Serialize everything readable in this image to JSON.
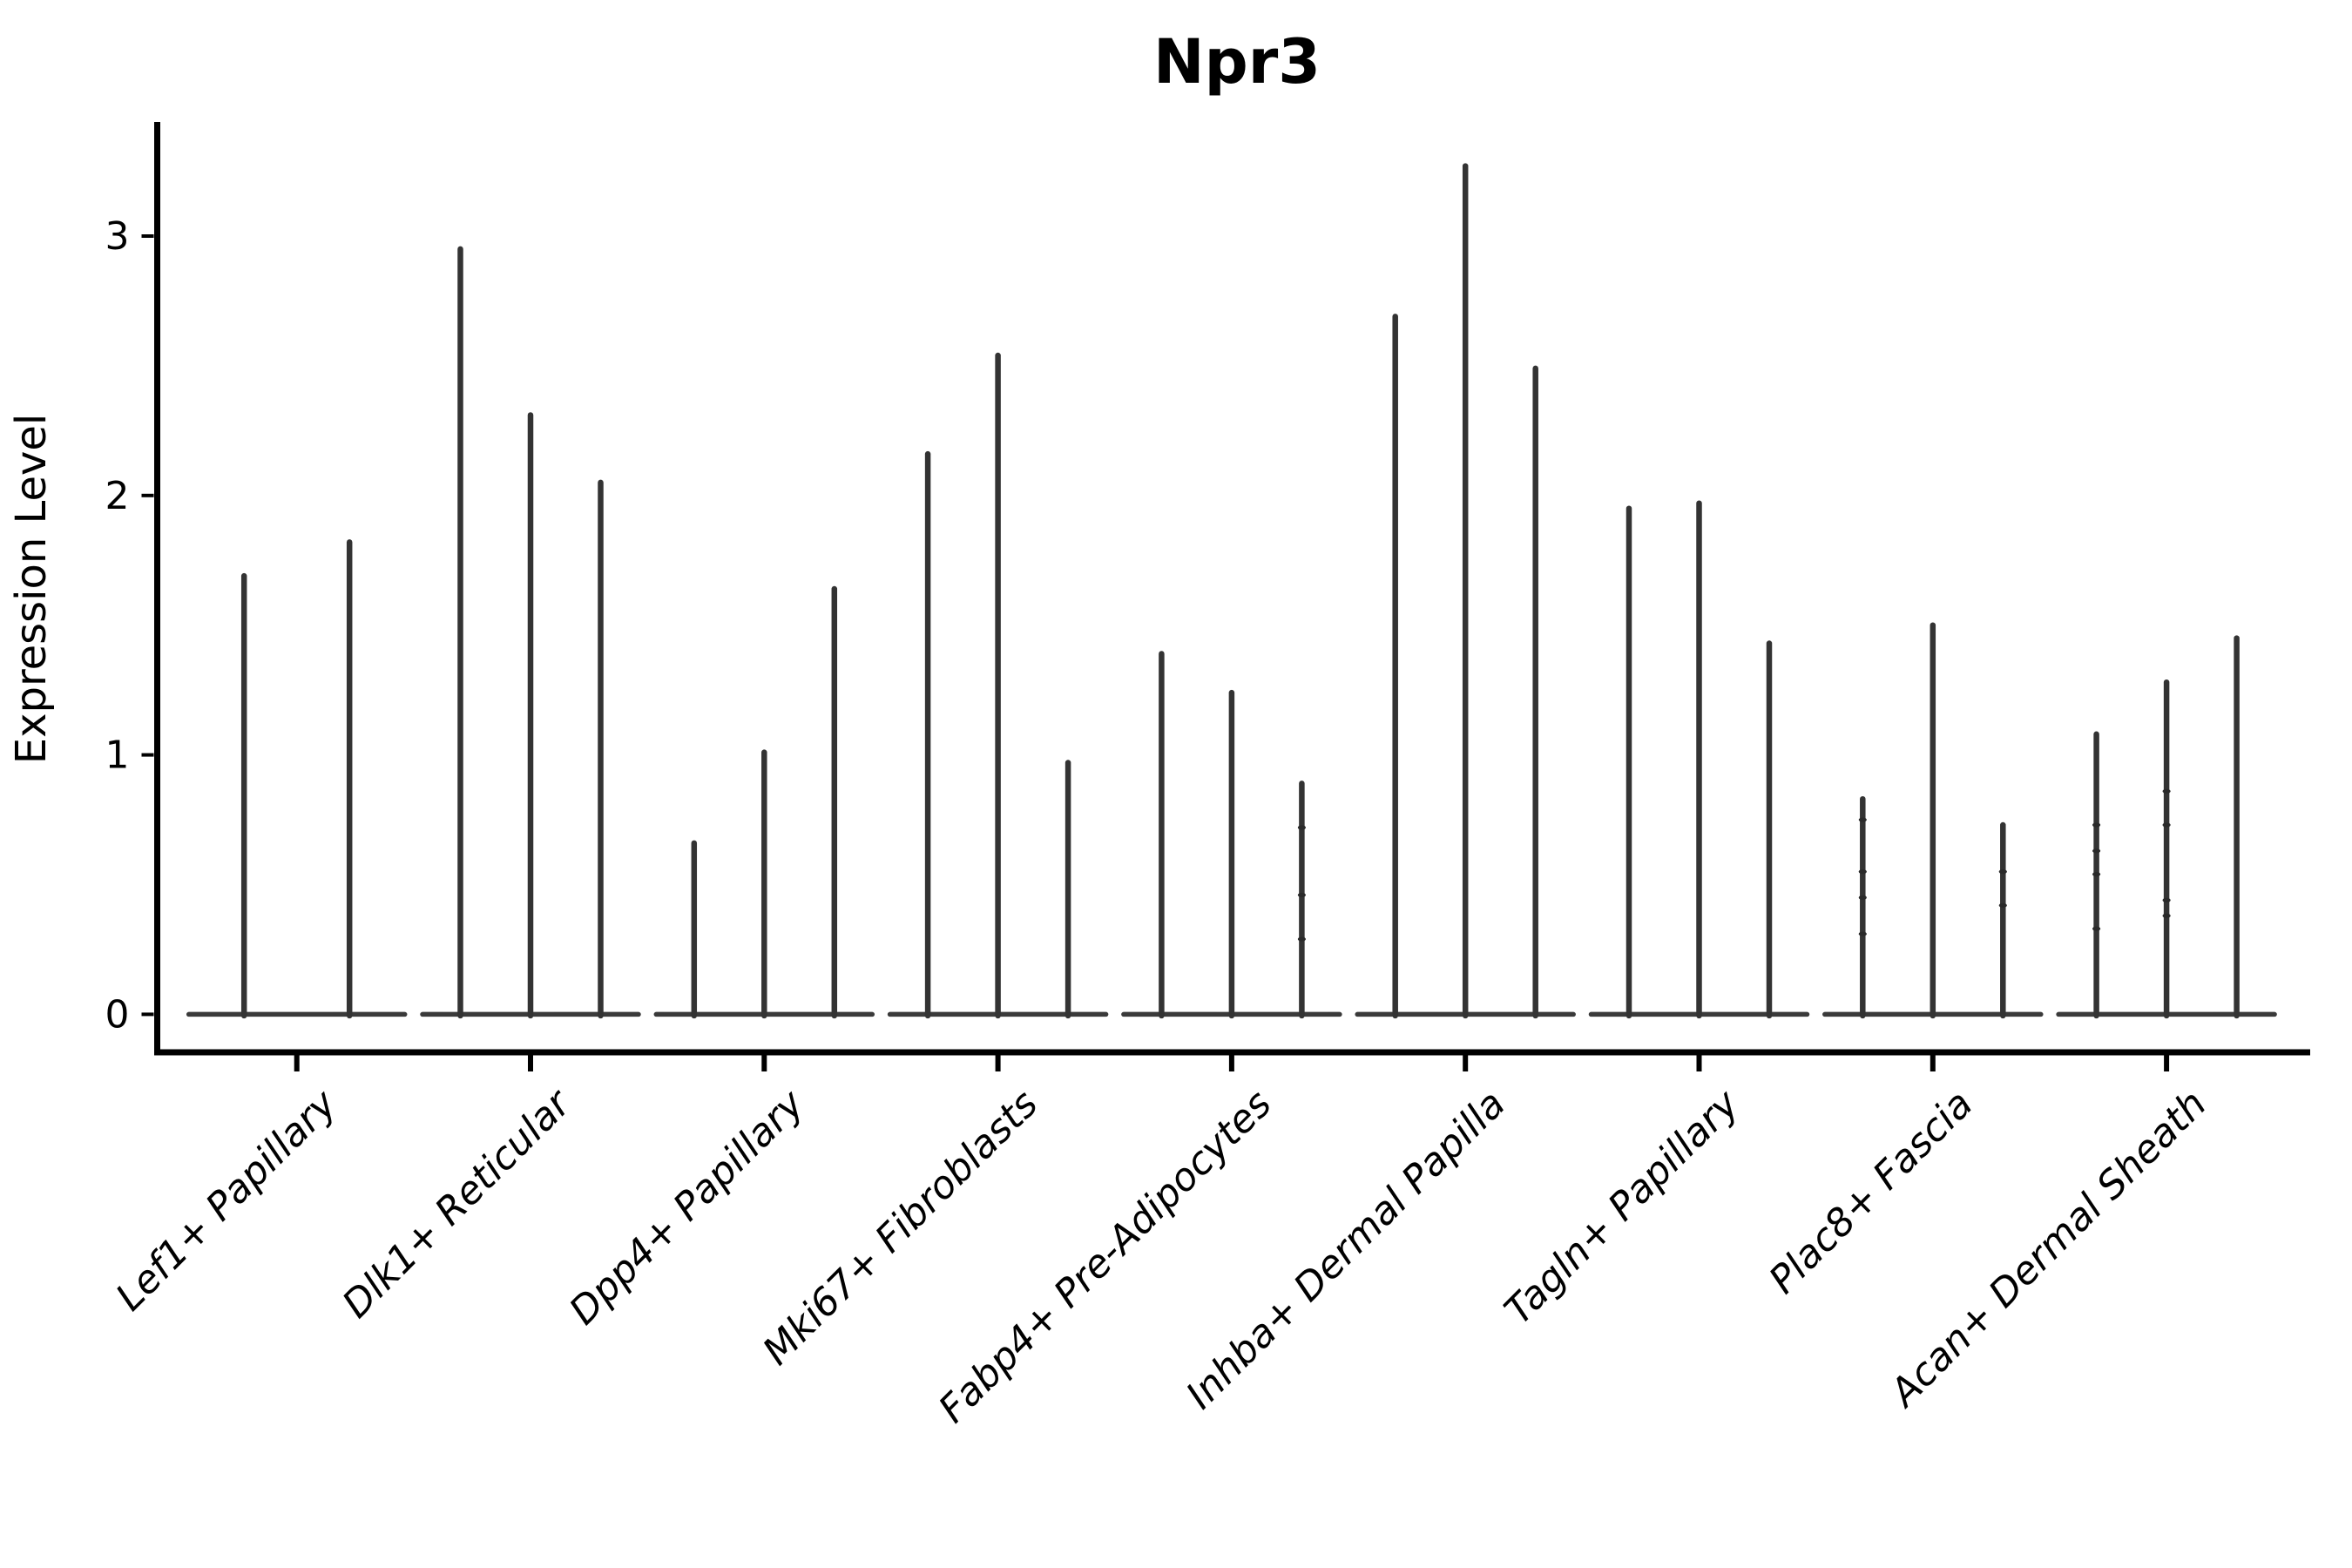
{
  "title": "Npr3",
  "style": {
    "background": "#ffffff",
    "axis_color": "#000000",
    "spike_color": "#333333",
    "base_color": "#3a3a3a",
    "dot_color": "#2a2a2a",
    "text_color": "#000000"
  },
  "chart_data": {
    "type": "violin",
    "title": "Npr3",
    "xlabel": "",
    "ylabel": "Expression Level",
    "yticks": [
      0,
      1,
      2,
      3
    ],
    "ylim": [
      -0.16,
      3.44
    ],
    "grid": false,
    "legend": null,
    "description": "Sparse single-cell expression violins: each category shows 2-3 narrow violins collapsed to a flat base at 0 with a thin spike up to the max expression value.",
    "categories": [
      "Lef1+ Papillary",
      "Dlk1+ Reticular",
      "Dpp4+ Papillary",
      "Mki67+ Fibroblasts",
      "Fabp4+ Pre-Adipocytes",
      "Inhba+ Dermal Papilla",
      "Tagln+ Papillary",
      "Plac8+ Fascia",
      "Acan+ Dermal Sheath"
    ],
    "groups": [
      {
        "category": "Lef1+ Papillary",
        "spikes": [
          1.69,
          1.82
        ],
        "dots": [
          [],
          []
        ]
      },
      {
        "category": "Dlk1+ Reticular",
        "spikes": [
          2.95,
          2.31,
          2.05
        ],
        "dots": [
          [],
          [],
          []
        ]
      },
      {
        "category": "Dpp4+ Papillary",
        "spikes": [
          0.66,
          1.01,
          1.64
        ],
        "dots": [
          [],
          [],
          []
        ]
      },
      {
        "category": "Mki67+ Fibroblasts",
        "spikes": [
          2.16,
          2.54,
          0.97
        ],
        "dots": [
          [],
          [],
          []
        ]
      },
      {
        "category": "Fabp4+ Pre-Adipocytes",
        "spikes": [
          1.39,
          1.24,
          0.89
        ],
        "dots": [
          [],
          [],
          [
            0.72,
            0.46,
            0.29
          ]
        ]
      },
      {
        "category": "Inhba+ Dermal Papilla",
        "spikes": [
          2.69,
          3.27,
          2.49
        ],
        "dots": [
          [],
          [],
          []
        ]
      },
      {
        "category": "Tagln+ Papillary",
        "spikes": [
          1.95,
          1.97,
          1.43
        ],
        "dots": [
          [],
          [],
          []
        ]
      },
      {
        "category": "Plac8+ Fascia",
        "spikes": [
          0.83,
          1.5,
          0.73
        ],
        "dots": [
          [
            0.75,
            0.55,
            0.45,
            0.31
          ],
          [],
          [
            0.55,
            0.42
          ]
        ]
      },
      {
        "category": "Acan+ Dermal Sheath",
        "spikes": [
          1.08,
          1.28,
          1.45
        ],
        "dots": [
          [
            0.73,
            0.63,
            0.54,
            0.33
          ],
          [
            0.86,
            0.73,
            0.44,
            0.38
          ],
          []
        ]
      }
    ]
  }
}
